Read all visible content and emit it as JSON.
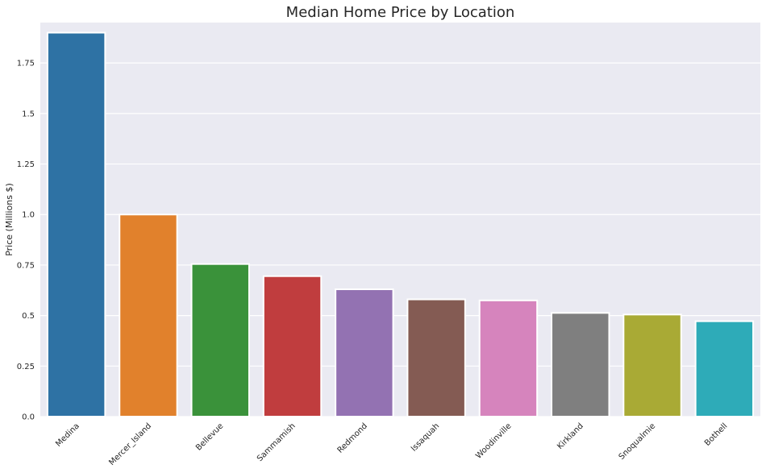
{
  "chart_data": {
    "type": "bar",
    "title": "Median Home Price by Location",
    "xlabel": "",
    "ylabel": "Price (Millions $)",
    "categories": [
      "Medina",
      "Mercer_Island",
      "Bellevue",
      "Sammamish",
      "Redmond",
      "Issaquah",
      "Woodinville",
      "Kirkland",
      "Snoqualmie",
      "Bothell"
    ],
    "values": [
      1.9,
      1.0,
      0.755,
      0.695,
      0.63,
      0.58,
      0.575,
      0.513,
      0.505,
      0.472
    ],
    "colors": [
      "#2e72a4",
      "#e1812c",
      "#3a923a",
      "#c03d3e",
      "#9372b2",
      "#845b53",
      "#d684bd",
      "#7f7f7f",
      "#a9aa35",
      "#2eabb8"
    ],
    "ylim": [
      0,
      1.95
    ],
    "yticks": [
      0.0,
      0.25,
      0.5,
      0.75,
      1.0,
      1.25,
      1.5,
      1.75
    ],
    "ytick_labels": [
      "0.0",
      "0.25",
      "0.5",
      "0.75",
      "1.0",
      "1.25",
      "1.5",
      "1.75"
    ],
    "grid": true,
    "background": "#eaeaf2"
  }
}
